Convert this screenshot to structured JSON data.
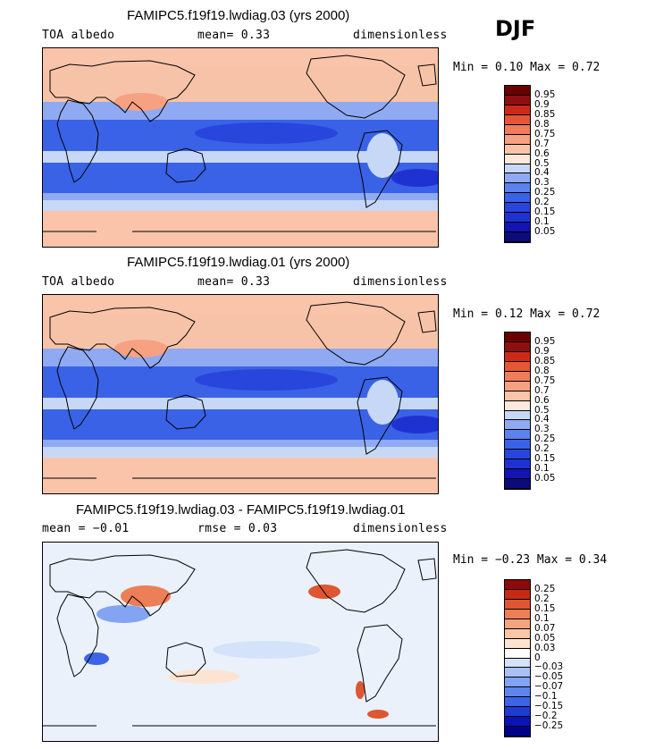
{
  "season": "DJF",
  "panels": [
    {
      "title": "FAMIPC5.f19f19.lwdiag.03 (yrs 2000)",
      "left": "TOA albedo",
      "middle": "mean=    0.33",
      "right": "dimensionless",
      "min_text": "Min =    0.10 Max =    0.72",
      "kind": "abs",
      "colorbar_labels": [
        "0.95",
        "0.9",
        "0.85",
        "0.8",
        "0.75",
        "0.7",
        "0.6",
        "0.5",
        "0.4",
        "0.3",
        "0.25",
        "0.2",
        "0.15",
        "0.1",
        "0.05"
      ]
    },
    {
      "title": "FAMIPC5.f19f19.lwdiag.01 (yrs 2000)",
      "left": "TOA albedo",
      "middle": "mean=    0.33",
      "right": "dimensionless",
      "min_text": "Min =    0.12 Max =    0.72",
      "kind": "abs",
      "colorbar_labels": [
        "0.95",
        "0.9",
        "0.85",
        "0.8",
        "0.75",
        "0.7",
        "0.6",
        "0.5",
        "0.4",
        "0.3",
        "0.25",
        "0.2",
        "0.15",
        "0.1",
        "0.05"
      ]
    },
    {
      "title": "FAMIPC5.f19f19.lwdiag.03 - FAMIPC5.f19f19.lwdiag.01",
      "left": "mean =  −0.01",
      "middle": "rmse =    0.03",
      "right": "dimensionless",
      "min_text": "Min =  −0.23 Max =    0.34",
      "kind": "diff",
      "colorbar_labels": [
        "0.25",
        "0.2",
        "0.15",
        "0.1",
        "0.07",
        "0.05",
        "0.03",
        "0",
        "−0.03",
        "−0.05",
        "−0.07",
        "−0.1",
        "−0.15",
        "−0.2",
        "−0.25"
      ]
    }
  ],
  "chart_data": [
    {
      "type": "heatmap",
      "title": "FAMIPC5.f19f19.lwdiag.03 (yrs 2000)",
      "variable": "TOA albedo",
      "units": "dimensionless",
      "mean": 0.33,
      "min": 0.1,
      "max": 0.72,
      "contour_levels": [
        0.05,
        0.1,
        0.15,
        0.2,
        0.25,
        0.3,
        0.4,
        0.5,
        0.6,
        0.7,
        0.75,
        0.8,
        0.85,
        0.9,
        0.95
      ],
      "colors": [
        "#0b0b7a",
        "#1414b4",
        "#1e32d2",
        "#2846dc",
        "#3a62e6",
        "#5c82ee",
        "#8faaf2",
        "#c7d8f6",
        "#fde9dc",
        "#f9c4aa",
        "#f6a182",
        "#f07c5c",
        "#e55636",
        "#cc2a18",
        "#8f0f0f",
        "#6a0000"
      ]
    },
    {
      "type": "heatmap",
      "title": "FAMIPC5.f19f19.lwdiag.01 (yrs 2000)",
      "variable": "TOA albedo",
      "units": "dimensionless",
      "mean": 0.33,
      "min": 0.12,
      "max": 0.72,
      "contour_levels": [
        0.05,
        0.1,
        0.15,
        0.2,
        0.25,
        0.3,
        0.4,
        0.5,
        0.6,
        0.7,
        0.75,
        0.8,
        0.85,
        0.9,
        0.95
      ],
      "colors": [
        "#0b0b7a",
        "#1414b4",
        "#1e32d2",
        "#2846dc",
        "#3a62e6",
        "#5c82ee",
        "#8faaf2",
        "#c7d8f6",
        "#fde9dc",
        "#f9c4aa",
        "#f6a182",
        "#f07c5c",
        "#e55636",
        "#cc2a18",
        "#8f0f0f",
        "#6a0000"
      ]
    },
    {
      "type": "heatmap",
      "title": "FAMIPC5.f19f19.lwdiag.03 - FAMIPC5.f19f19.lwdiag.01",
      "units": "dimensionless",
      "mean": -0.01,
      "rmse": 0.03,
      "min": -0.23,
      "max": 0.34,
      "contour_levels": [
        -0.25,
        -0.2,
        -0.15,
        -0.1,
        -0.07,
        -0.05,
        -0.03,
        0,
        0.03,
        0.05,
        0.07,
        0.1,
        0.15,
        0.2,
        0.25
      ],
      "colors": [
        "#00008a",
        "#0a14b4",
        "#1e3cd2",
        "#3c64e6",
        "#5f86ee",
        "#82a4f2",
        "#a9c2f6",
        "#d4e2fa",
        "#ffffff",
        "#fde4d2",
        "#f9c6aa",
        "#f4a480",
        "#ec7e58",
        "#de5632",
        "#c42a14",
        "#8c0a0a"
      ]
    }
  ]
}
